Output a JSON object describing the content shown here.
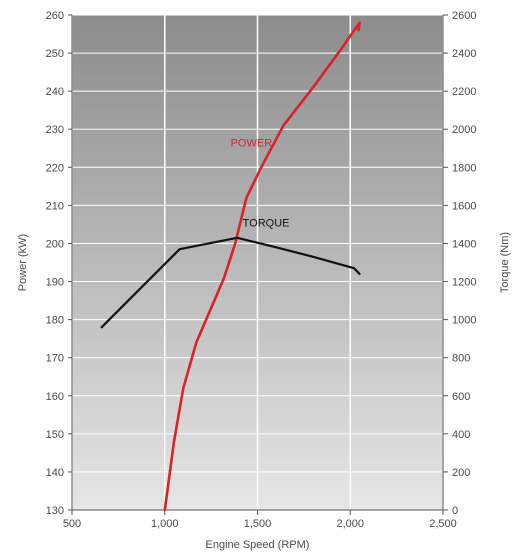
{
  "colors": {
    "plot_bg_top": "#8c8c8c",
    "plot_bg_bottom": "#e6e6e6",
    "grid": "#ffffff",
    "power": "#d9222a",
    "torque": "#111111",
    "text": "#4a4a4a"
  },
  "chart_data": {
    "type": "line",
    "xlabel": "Engine Speed (RPM)",
    "ylabel": "Power (kW)",
    "y2label": "Torque (Nm)",
    "xlim": [
      500,
      2500
    ],
    "ylim": [
      130,
      260
    ],
    "y2lim": [
      0,
      2600
    ],
    "x_ticks": [
      500,
      1000,
      1500,
      2000,
      2500
    ],
    "x_tick_labels": [
      "500",
      "1,000",
      "1,500",
      "2,000",
      "2,500"
    ],
    "y_ticks": [
      130,
      140,
      150,
      160,
      170,
      180,
      190,
      200,
      210,
      220,
      230,
      240,
      250,
      260
    ],
    "y_tick_labels": [
      "130",
      "140",
      "150",
      "160",
      "170",
      "180",
      "190",
      "200",
      "210",
      "220",
      "230",
      "240",
      "250",
      "260"
    ],
    "y2_ticks": [
      0,
      200,
      400,
      600,
      800,
      1000,
      1200,
      1400,
      1600,
      1800,
      2000,
      2200,
      2400,
      2600
    ],
    "y2_tick_labels": [
      "0",
      "200",
      "400",
      "600",
      "800",
      "1000",
      "1200",
      "1400",
      "1600",
      "1800",
      "2000",
      "2200",
      "2400",
      "2600"
    ],
    "grid": true,
    "series": [
      {
        "name": "POWER",
        "axis": "left",
        "color": "#d9222a",
        "x": [
          1000,
          1050,
          1100,
          1170,
          1250,
          1320,
          1380,
          1440,
          1520,
          1640,
          1800,
          1950,
          2050,
          2045
        ],
        "y": [
          130,
          148,
          162,
          174,
          183,
          191,
          200,
          212,
          220,
          231,
          241,
          251,
          258,
          256
        ]
      },
      {
        "name": "TORQUE",
        "axis": "right",
        "color": "#111111",
        "x": [
          660,
          1080,
          1390,
          1600,
          1800,
          2020,
          2050
        ],
        "y": [
          960,
          1370,
          1430,
          1380,
          1330,
          1270,
          1240
        ]
      }
    ],
    "annotations": [
      {
        "text": "POWER",
        "series": 0,
        "x": 1355,
        "y": 225.5
      },
      {
        "text": "TORQUE",
        "series": 1,
        "x": 1420,
        "y": 1490
      }
    ]
  }
}
